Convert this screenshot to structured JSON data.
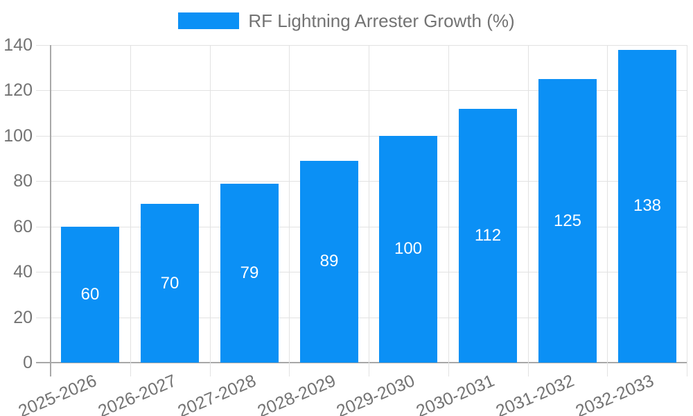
{
  "legend": {
    "label": "RF Lightning Arrester Growth (%)"
  },
  "chart_data": {
    "type": "bar",
    "title": "RF Lightning Arrester Growth (%)",
    "series_name": "RF Lightning Arrester Growth (%)",
    "categories": [
      "2025-2026",
      "2026-2027",
      "2027-2028",
      "2028-2029",
      "2029-2030",
      "2030-2031",
      "2031-2032",
      "2032-2033"
    ],
    "values": [
      60,
      70,
      79,
      89,
      100,
      112,
      125,
      138
    ],
    "value_labels_visible": true,
    "xlabel": "",
    "ylabel": "",
    "ylim": [
      0,
      140
    ],
    "yticks": [
      0,
      20,
      40,
      60,
      80,
      100,
      120,
      140
    ],
    "legend_position": "top-center",
    "grid": "horizontal and vertical category-boundary gridlines",
    "colors": {
      "bar": "#0B90F5",
      "grid": "#E2E2E2",
      "axis": "#A8A8A8",
      "tick_text": "#737373",
      "value_label": "#FFFFFF",
      "background": "#FFFFFF"
    }
  }
}
